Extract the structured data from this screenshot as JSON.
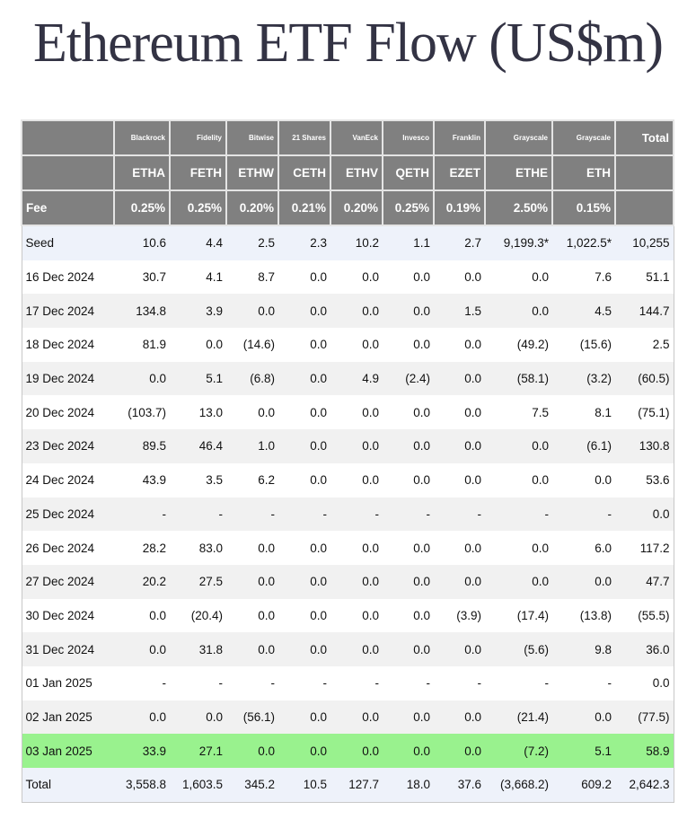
{
  "title": "Ethereum ETF Flow (US$m)",
  "colors": {
    "header_bg": "#808080",
    "negative": "#e0141e",
    "highlight": "#99f28e",
    "seed_total_bg": "#eef2fa"
  },
  "header": {
    "issuers": [
      "Blackrock",
      "Fidelity",
      "Bitwise",
      "21 Shares",
      "VanEck",
      "Invesco",
      "Franklin",
      "Grayscale",
      "Grayscale"
    ],
    "total_label": "Total",
    "tickers": [
      "ETHA",
      "FETH",
      "ETHW",
      "CETH",
      "ETHV",
      "QETH",
      "EZET",
      "ETHE",
      "ETH"
    ],
    "fee_label": "Fee",
    "fees": [
      "0.25%",
      "0.25%",
      "0.20%",
      "0.21%",
      "0.20%",
      "0.25%",
      "0.19%",
      "2.50%",
      "0.15%"
    ]
  },
  "rows": [
    {
      "label": "Seed",
      "values": [
        "10.6",
        "4.4",
        "2.5",
        "2.3",
        "10.2",
        "1.1",
        "2.7",
        "9,199.3*",
        "1,022.5*",
        "10,255"
      ]
    },
    {
      "label": "16 Dec 2024",
      "values": [
        "30.7",
        "4.1",
        "8.7",
        "0.0",
        "0.0",
        "0.0",
        "0.0",
        "0.0",
        "7.6",
        "51.1"
      ]
    },
    {
      "label": "17 Dec 2024",
      "values": [
        "134.8",
        "3.9",
        "0.0",
        "0.0",
        "0.0",
        "0.0",
        "1.5",
        "0.0",
        "4.5",
        "144.7"
      ]
    },
    {
      "label": "18 Dec 2024",
      "values": [
        "81.9",
        "0.0",
        "(14.6)",
        "0.0",
        "0.0",
        "0.0",
        "0.0",
        "(49.2)",
        "(15.6)",
        "2.5"
      ]
    },
    {
      "label": "19 Dec 2024",
      "values": [
        "0.0",
        "5.1",
        "(6.8)",
        "0.0",
        "4.9",
        "(2.4)",
        "0.0",
        "(58.1)",
        "(3.2)",
        "(60.5)"
      ]
    },
    {
      "label": "20 Dec 2024",
      "values": [
        "(103.7)",
        "13.0",
        "0.0",
        "0.0",
        "0.0",
        "0.0",
        "0.0",
        "7.5",
        "8.1",
        "(75.1)"
      ]
    },
    {
      "label": "23 Dec 2024",
      "values": [
        "89.5",
        "46.4",
        "1.0",
        "0.0",
        "0.0",
        "0.0",
        "0.0",
        "0.0",
        "(6.1)",
        "130.8"
      ]
    },
    {
      "label": "24 Dec 2024",
      "values": [
        "43.9",
        "3.5",
        "6.2",
        "0.0",
        "0.0",
        "0.0",
        "0.0",
        "0.0",
        "0.0",
        "53.6"
      ]
    },
    {
      "label": "25 Dec 2024",
      "values": [
        "-",
        "-",
        "-",
        "-",
        "-",
        "-",
        "-",
        "-",
        "-",
        "0.0"
      ]
    },
    {
      "label": "26 Dec 2024",
      "values": [
        "28.2",
        "83.0",
        "0.0",
        "0.0",
        "0.0",
        "0.0",
        "0.0",
        "0.0",
        "6.0",
        "117.2"
      ]
    },
    {
      "label": "27 Dec 2024",
      "values": [
        "20.2",
        "27.5",
        "0.0",
        "0.0",
        "0.0",
        "0.0",
        "0.0",
        "0.0",
        "0.0",
        "47.7"
      ]
    },
    {
      "label": "30 Dec 2024",
      "values": [
        "0.0",
        "(20.4)",
        "0.0",
        "0.0",
        "0.0",
        "0.0",
        "(3.9)",
        "(17.4)",
        "(13.8)",
        "(55.5)"
      ]
    },
    {
      "label": "31 Dec 2024",
      "values": [
        "0.0",
        "31.8",
        "0.0",
        "0.0",
        "0.0",
        "0.0",
        "0.0",
        "(5.6)",
        "9.8",
        "36.0"
      ]
    },
    {
      "label": "01 Jan 2025",
      "values": [
        "-",
        "-",
        "-",
        "-",
        "-",
        "-",
        "-",
        "-",
        "-",
        "0.0"
      ]
    },
    {
      "label": "02 Jan 2025",
      "values": [
        "0.0",
        "0.0",
        "(56.1)",
        "0.0",
        "0.0",
        "0.0",
        "0.0",
        "(21.4)",
        "0.0",
        "(77.5)"
      ]
    },
    {
      "label": "03 Jan 2025",
      "values": [
        "33.9",
        "27.1",
        "0.0",
        "0.0",
        "0.0",
        "0.0",
        "0.0",
        "(7.2)",
        "5.1",
        "58.9"
      ]
    },
    {
      "label": "Total",
      "values": [
        "3,558.8",
        "1,603.5",
        "345.2",
        "10.5",
        "127.7",
        "18.0",
        "37.6",
        "(3,668.2)",
        "609.2",
        "2,642.3"
      ]
    }
  ]
}
